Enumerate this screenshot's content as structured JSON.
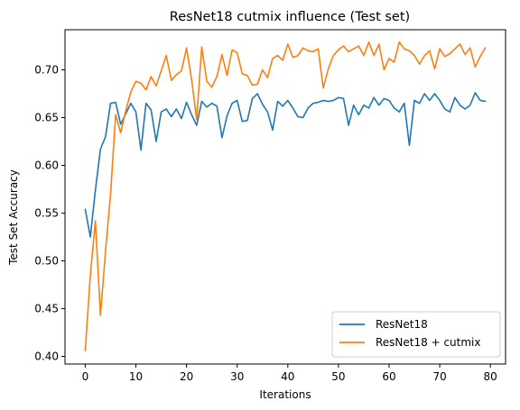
{
  "chart_data": {
    "type": "line",
    "title": "ResNet18 cutmix influence (Test set)",
    "xlabel": "Iterations",
    "ylabel": "Test Set Accuracy",
    "xlim": [
      -4,
      83
    ],
    "ylim": [
      0.392,
      0.742
    ],
    "xticks": [
      0,
      10,
      20,
      30,
      40,
      50,
      60,
      70,
      80
    ],
    "yticks": [
      0.4,
      0.45,
      0.5,
      0.55,
      0.6,
      0.65,
      0.7
    ],
    "ytick_labels": [
      "0.40",
      "0.45",
      "0.50",
      "0.55",
      "0.60",
      "0.65",
      "0.70"
    ],
    "grid": false,
    "legend_position": "lower right",
    "x": [
      0,
      1,
      2,
      3,
      4,
      5,
      6,
      7,
      8,
      9,
      10,
      11,
      12,
      13,
      14,
      15,
      16,
      17,
      18,
      19,
      20,
      21,
      22,
      23,
      24,
      25,
      26,
      27,
      28,
      29,
      30,
      31,
      32,
      33,
      34,
      35,
      36,
      37,
      38,
      39,
      40,
      41,
      42,
      43,
      44,
      45,
      46,
      47,
      48,
      49,
      50,
      51,
      52,
      53,
      54,
      55,
      56,
      57,
      58,
      59,
      60,
      61,
      62,
      63,
      64,
      65,
      66,
      67,
      68,
      69,
      70,
      71,
      72,
      73,
      74,
      75,
      76,
      77,
      78,
      79
    ],
    "series": [
      {
        "name": "ResNet18",
        "color": "#1f77b4",
        "values": [
          0.554,
          0.525,
          0.574,
          0.617,
          0.63,
          0.665,
          0.666,
          0.643,
          0.654,
          0.665,
          0.656,
          0.616,
          0.665,
          0.658,
          0.625,
          0.656,
          0.659,
          0.651,
          0.659,
          0.649,
          0.666,
          0.653,
          0.642,
          0.667,
          0.661,
          0.665,
          0.662,
          0.629,
          0.652,
          0.665,
          0.668,
          0.646,
          0.647,
          0.67,
          0.675,
          0.664,
          0.656,
          0.637,
          0.667,
          0.662,
          0.668,
          0.66,
          0.651,
          0.65,
          0.66,
          0.665,
          0.666,
          0.668,
          0.667,
          0.668,
          0.671,
          0.67,
          0.642,
          0.663,
          0.653,
          0.663,
          0.66,
          0.671,
          0.663,
          0.67,
          0.668,
          0.66,
          0.656,
          0.665,
          0.621,
          0.668,
          0.665,
          0.675,
          0.668,
          0.675,
          0.668,
          0.659,
          0.656,
          0.671,
          0.663,
          0.659,
          0.663,
          0.676,
          0.668,
          0.667
        ]
      },
      {
        "name": "ResNet18 + cutmix",
        "color": "#ff7f0e",
        "values": [
          0.406,
          0.485,
          0.542,
          0.443,
          0.51,
          0.57,
          0.653,
          0.634,
          0.657,
          0.677,
          0.688,
          0.686,
          0.679,
          0.693,
          0.683,
          0.699,
          0.715,
          0.689,
          0.695,
          0.699,
          0.723,
          0.69,
          0.648,
          0.724,
          0.688,
          0.682,
          0.693,
          0.716,
          0.694,
          0.721,
          0.718,
          0.696,
          0.694,
          0.684,
          0.685,
          0.7,
          0.692,
          0.712,
          0.715,
          0.71,
          0.727,
          0.713,
          0.715,
          0.723,
          0.72,
          0.719,
          0.722,
          0.681,
          0.701,
          0.715,
          0.721,
          0.725,
          0.719,
          0.722,
          0.725,
          0.715,
          0.729,
          0.715,
          0.727,
          0.7,
          0.712,
          0.708,
          0.729,
          0.722,
          0.72,
          0.715,
          0.706,
          0.715,
          0.72,
          0.701,
          0.722,
          0.714,
          0.717,
          0.722,
          0.727,
          0.716,
          0.723,
          0.703,
          0.714,
          0.723
        ]
      }
    ]
  }
}
